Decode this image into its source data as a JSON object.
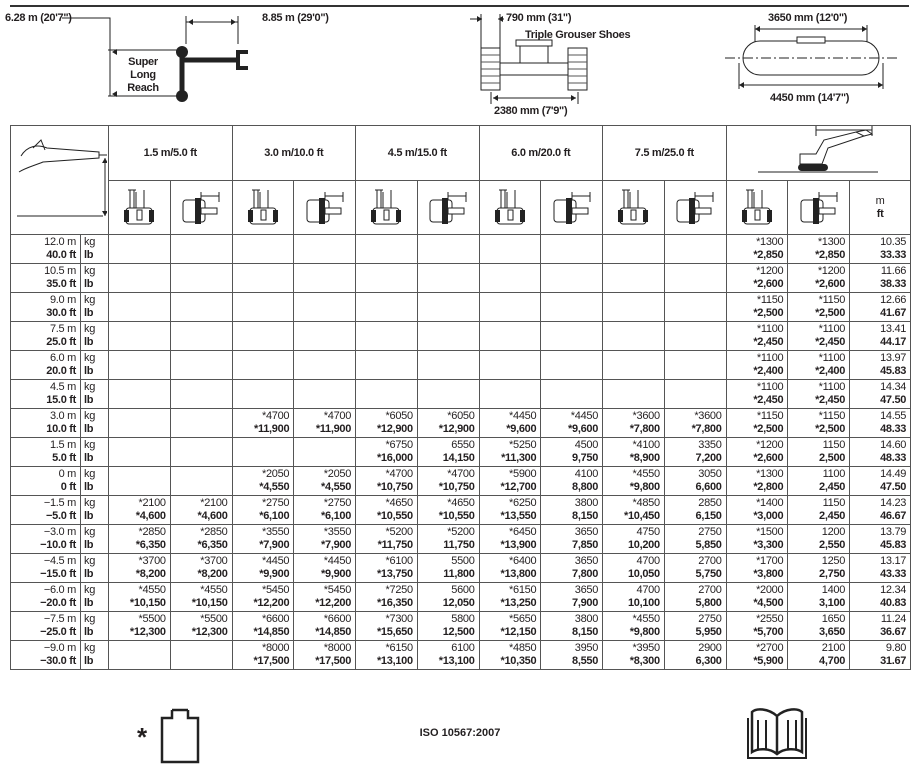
{
  "dimensions": {
    "boom_height": "6.28 m (20'7\")",
    "reach": "8.85 m (29'0\")",
    "boom_type": "Super Long Reach",
    "shoe_width": "790 mm (31\")",
    "shoe_type": "Triple Grouser Shoes",
    "track_gauge": "2380 mm (7'9\")",
    "tumbler_distance": "3650 mm (12'0\")",
    "track_length": "4450 mm (14'7\")"
  },
  "table": {
    "radius_headers": [
      "1.5 m/5.0 ft",
      "3.0 m/10.0 ft",
      "4.5 m/15.0 ft",
      "6.0 m/20.0 ft",
      "7.5 m/25.0 ft"
    ],
    "reach_units": {
      "m": "m",
      "ft": "ft"
    },
    "unit_kg": "kg",
    "unit_lb": "lb",
    "rows": [
      {
        "m": "12.0 m",
        "ft": "40.0 ft",
        "cells": [
          null,
          null,
          null,
          null,
          null,
          null,
          null,
          null,
          null,
          null,
          "*1300|*2,850",
          "*1300|*2,850"
        ],
        "reach": [
          "10.35",
          "33.33"
        ]
      },
      {
        "m": "10.5 m",
        "ft": "35.0 ft",
        "cells": [
          null,
          null,
          null,
          null,
          null,
          null,
          null,
          null,
          null,
          null,
          "*1200|*2,600",
          "*1200|*2,600"
        ],
        "reach": [
          "11.66",
          "38.33"
        ]
      },
      {
        "m": "9.0 m",
        "ft": "30.0 ft",
        "cells": [
          null,
          null,
          null,
          null,
          null,
          null,
          null,
          null,
          null,
          null,
          "*1150|*2,500",
          "*1150|*2,500"
        ],
        "reach": [
          "12.66",
          "41.67"
        ]
      },
      {
        "m": "7.5 m",
        "ft": "25.0 ft",
        "cells": [
          null,
          null,
          null,
          null,
          null,
          null,
          null,
          null,
          null,
          null,
          "*1100|*2,450",
          "*1100|*2,450"
        ],
        "reach": [
          "13.41",
          "44.17"
        ]
      },
      {
        "m": "6.0 m",
        "ft": "20.0 ft",
        "cells": [
          null,
          null,
          null,
          null,
          null,
          null,
          null,
          null,
          null,
          null,
          "*1100|*2,400",
          "*1100|*2,400"
        ],
        "reach": [
          "13.97",
          "45.83"
        ]
      },
      {
        "m": "4.5 m",
        "ft": "15.0 ft",
        "cells": [
          null,
          null,
          null,
          null,
          null,
          null,
          null,
          null,
          null,
          null,
          "*1100|*2,450",
          "*1100|*2,450"
        ],
        "reach": [
          "14.34",
          "47.50"
        ]
      },
      {
        "m": "3.0 m",
        "ft": "10.0 ft",
        "cells": [
          null,
          null,
          "*4700|*11,900",
          "*4700|*11,900",
          "*6050|*12,900",
          "*6050|*12,900",
          "*4450|*9,600",
          "*4450|*9,600",
          "*3600|*7,800",
          "*3600|*7,800",
          "*1150|*2,500",
          "*1150|*2,500"
        ],
        "reach": [
          "14.55",
          "48.33"
        ]
      },
      {
        "m": "1.5 m",
        "ft": "5.0 ft",
        "cells": [
          null,
          null,
          null,
          null,
          "*6750|*16,000",
          "6550|14,150",
          "*5250|*11,300",
          "4500|9,750",
          "*4100|*8,900",
          "3350|7,200",
          "*1200|*2,600",
          "1150|2,500"
        ],
        "reach": [
          "14.60",
          "48.33"
        ]
      },
      {
        "m": "0 m",
        "ft": "0 ft",
        "cells": [
          null,
          null,
          "*2050|*4,550",
          "*2050|*4,550",
          "*4700|*10,750",
          "*4700|*10,750",
          "*5900|*12,700",
          "4100|8,800",
          "*4550|*9,800",
          "3050|6,600",
          "*1300|*2,800",
          "1100|2,450"
        ],
        "reach": [
          "14.49",
          "47.50"
        ]
      },
      {
        "m": "−1.5 m",
        "ft": "−5.0 ft",
        "cells": [
          "*2100|*4,600",
          "*2100|*4,600",
          "*2750|*6,100",
          "*2750|*6,100",
          "*4650|*10,550",
          "*4650|*10,550",
          "*6250|*13,550",
          "3800|8,150",
          "*4850|*10,450",
          "2850|6,150",
          "*1400|*3,000",
          "1150|2,450"
        ],
        "reach": [
          "14.23",
          "46.67"
        ]
      },
      {
        "m": "−3.0 m",
        "ft": "−10.0 ft",
        "cells": [
          "*2850|*6,350",
          "*2850|*6,350",
          "*3550|*7,900",
          "*3550|*7,900",
          "*5200|*11,750",
          "*5200|11,750",
          "*6450|*13,900",
          "3650|7,850",
          "4750|10,200",
          "2750|5,850",
          "*1500|*3,300",
          "1200|2,550"
        ],
        "reach": [
          "13.79",
          "45.83"
        ]
      },
      {
        "m": "−4.5 m",
        "ft": "−15.0 ft",
        "cells": [
          "*3700|*8,200",
          "*3700|*8,200",
          "*4450|*9,900",
          "*4450|*9,900",
          "*6100|*13,750",
          "5500|11,800",
          "*6400|*13,800",
          "3650|7,800",
          "4700|10,050",
          "2700|5,750",
          "*1700|*3,800",
          "1250|2,750"
        ],
        "reach": [
          "13.17",
          "43.33"
        ]
      },
      {
        "m": "−6.0 m",
        "ft": "−20.0 ft",
        "cells": [
          "*4550|*10,150",
          "*4550|*10,150",
          "*5450|*12,200",
          "*5450|*12,200",
          "*7250|*16,350",
          "5600|12,050",
          "*6150|*13,250",
          "3650|7,900",
          "4700|10,100",
          "2700|5,800",
          "*2000|*4,500",
          "1400|3,100"
        ],
        "reach": [
          "12.34",
          "40.83"
        ]
      },
      {
        "m": "−7.5 m",
        "ft": "−25.0 ft",
        "cells": [
          "*5500|*12,300",
          "*5500|*12,300",
          "*6600|*14,850",
          "*6600|*14,850",
          "*7300|*15,650",
          "5800|12,500",
          "*5650|*12,150",
          "3800|8,150",
          "*4550|*9,800",
          "2750|5,950",
          "*2550|*5,700",
          "1650|3,650"
        ],
        "reach": [
          "11.24",
          "36.67"
        ]
      },
      {
        "m": "−9.0 m",
        "ft": "−30.0 ft",
        "cells": [
          null,
          null,
          "*8000|*17,500",
          "*8000|*17,500",
          "*6150|*13,100",
          "6100|*13,100",
          "*4850|*10,350",
          "3950|8,550",
          "*3950|*8,300",
          "2900|6,300",
          "*2700|*5,900",
          "2100|4,700"
        ],
        "reach": [
          "9.80",
          "31.67"
        ]
      }
    ]
  },
  "footer": {
    "asterisk": "*",
    "standard": "ISO 10567:2007"
  },
  "icons": [
    "boom-diagram-icon",
    "track-diagram-icon",
    "undercarriage-diagram-icon",
    "load-height-icon",
    "max-reach-excavator-icon",
    "over-front-icon",
    "over-side-icon",
    "hydraulic-limited-icon",
    "manual-book-icon"
  ]
}
